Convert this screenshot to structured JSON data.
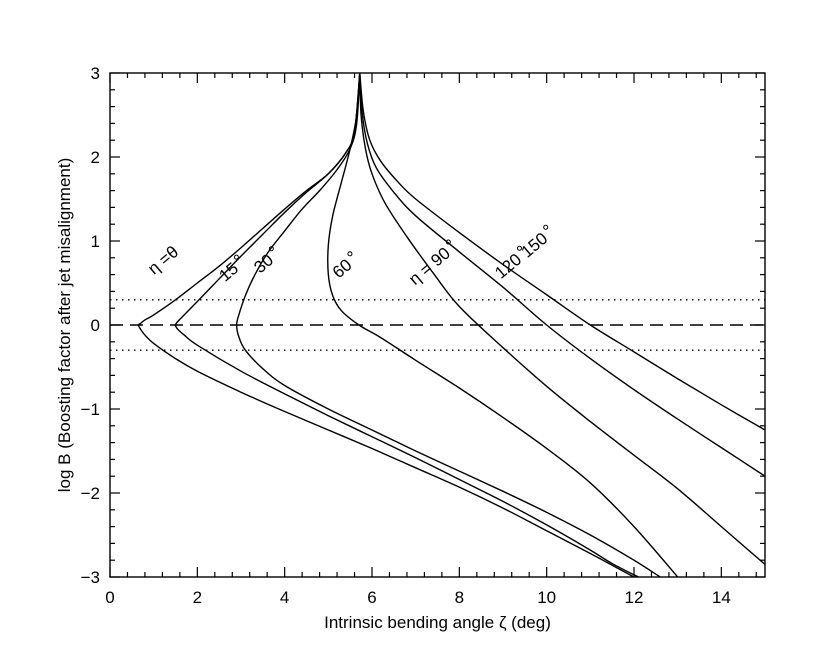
{
  "chart_data": {
    "type": "line",
    "xlabel": "Intrinsic bending angle ζ (deg)",
    "ylabel": "log B (Boosting factor after jet misalignment)",
    "xlim": [
      0,
      15
    ],
    "ylim": [
      -3,
      3
    ],
    "xticks": [
      0,
      2,
      4,
      6,
      8,
      10,
      12,
      14
    ],
    "yticks": [
      -3,
      -2,
      -1,
      0,
      1,
      2,
      3
    ],
    "xtick_labels": [
      "0",
      "2",
      "4",
      "6",
      "8",
      "10",
      "12",
      "14"
    ],
    "ytick_labels": [
      "−3",
      "−2",
      "−1",
      "0",
      "1",
      "2",
      "3"
    ],
    "grid": false,
    "reference_lines": [
      {
        "y": 0.3,
        "style": "dotted"
      },
      {
        "y": 0,
        "style": "dashed"
      },
      {
        "y": -0.3,
        "style": "dotted"
      }
    ],
    "series": [
      {
        "name": "η =θ",
        "label_at": [
          1.3,
          0.72
        ],
        "x": [
          5.72,
          5.6,
          5.4,
          5.0,
          4.5,
          4.0,
          3.5,
          3.0,
          2.5,
          2.0,
          1.5,
          1.0,
          0.8,
          0.7,
          0.65,
          0.7,
          0.8,
          1.0,
          1.5,
          2.0,
          3.0,
          4.0,
          5.0,
          6.0,
          7.0,
          8.0,
          9.0,
          10.0,
          11.0,
          11.5,
          12.0
        ],
        "y": [
          3.0,
          2.3,
          2.05,
          1.8,
          1.6,
          1.38,
          1.15,
          0.92,
          0.7,
          0.5,
          0.3,
          0.12,
          0.06,
          0.02,
          0.0,
          -0.05,
          -0.12,
          -0.22,
          -0.4,
          -0.55,
          -0.8,
          -1.03,
          -1.25,
          -1.47,
          -1.7,
          -1.93,
          -2.18,
          -2.45,
          -2.72,
          -2.86,
          -3.0
        ]
      },
      {
        "name": "15",
        "label_at": [
          2.8,
          0.58
        ],
        "x": [
          5.72,
          5.6,
          5.4,
          5.0,
          4.5,
          4.0,
          3.5,
          3.0,
          2.5,
          2.0,
          1.7,
          1.55,
          1.5,
          1.55,
          1.7,
          2.0,
          3.0,
          4.0,
          5.0,
          6.0,
          7.0,
          8.0,
          9.0,
          10.0,
          11.0,
          11.5,
          12.1
        ],
        "y": [
          3.0,
          2.3,
          2.05,
          1.8,
          1.58,
          1.34,
          1.08,
          0.82,
          0.55,
          0.28,
          0.12,
          0.04,
          0.0,
          -0.05,
          -0.12,
          -0.24,
          -0.55,
          -0.82,
          -1.08,
          -1.33,
          -1.58,
          -1.84,
          -2.1,
          -2.38,
          -2.68,
          -2.84,
          -3.0
        ]
      },
      {
        "name": "30",
        "label_at": [
          3.6,
          0.68
        ],
        "x": [
          5.72,
          5.65,
          5.5,
          5.2,
          4.8,
          4.4,
          4.0,
          3.6,
          3.3,
          3.1,
          2.95,
          2.9,
          2.95,
          3.1,
          3.5,
          4.0,
          5.0,
          6.0,
          7.0,
          8.0,
          9.0,
          10.0,
          11.0,
          12.0,
          12.6
        ],
        "y": [
          3.0,
          2.4,
          2.1,
          1.85,
          1.6,
          1.38,
          1.12,
          0.85,
          0.58,
          0.35,
          0.12,
          0.0,
          -0.14,
          -0.3,
          -0.52,
          -0.72,
          -1.0,
          -1.25,
          -1.5,
          -1.74,
          -1.98,
          -2.23,
          -2.5,
          -2.8,
          -3.0
        ]
      },
      {
        "name": "60",
        "label_at": [
          5.4,
          0.62
        ],
        "x": [
          5.72,
          5.65,
          5.5,
          5.3,
          5.1,
          5.0,
          5.0,
          5.1,
          5.3,
          5.7,
          6.2,
          7.0,
          8.0,
          9.0,
          10.0,
          11.0,
          12.0,
          13.0
        ],
        "y": [
          3.0,
          2.5,
          2.1,
          1.7,
          1.3,
          0.95,
          0.6,
          0.35,
          0.17,
          0.0,
          -0.15,
          -0.42,
          -0.75,
          -1.1,
          -1.47,
          -1.88,
          -2.4,
          -3.0
        ]
      },
      {
        "name": "η = 90",
        "label_at": [
          7.4,
          0.65
        ],
        "x": [
          5.72,
          5.75,
          5.85,
          6.0,
          6.3,
          6.8,
          7.4,
          8.0,
          9.0,
          10.0,
          11.0,
          12.0,
          13.0,
          14.0,
          15.0
        ],
        "y": [
          3.0,
          2.5,
          2.1,
          1.8,
          1.45,
          1.05,
          0.62,
          0.22,
          -0.27,
          -0.73,
          -1.15,
          -1.55,
          -1.95,
          -2.4,
          -2.85
        ]
      },
      {
        "name": "120",
        "label_at": [
          9.2,
          0.65
        ],
        "x": [
          5.72,
          5.78,
          5.9,
          6.1,
          6.5,
          7.0,
          8.0,
          9.0,
          10.0,
          11.0,
          12.0,
          13.0,
          14.0,
          15.0
        ],
        "y": [
          3.0,
          2.5,
          2.15,
          1.87,
          1.58,
          1.3,
          0.87,
          0.45,
          0.0,
          -0.4,
          -0.77,
          -1.12,
          -1.46,
          -1.8
        ]
      },
      {
        "name": "150",
        "label_at": [
          9.8,
          0.9
        ],
        "x": [
          5.72,
          5.8,
          5.95,
          6.2,
          6.6,
          7.0,
          8.0,
          9.0,
          10.0,
          11.0,
          12.0,
          13.0,
          14.0,
          15.0
        ],
        "y": [
          3.0,
          2.55,
          2.2,
          1.95,
          1.7,
          1.5,
          1.1,
          0.72,
          0.36,
          0.0,
          -0.32,
          -0.64,
          -0.95,
          -1.25
        ]
      }
    ]
  }
}
